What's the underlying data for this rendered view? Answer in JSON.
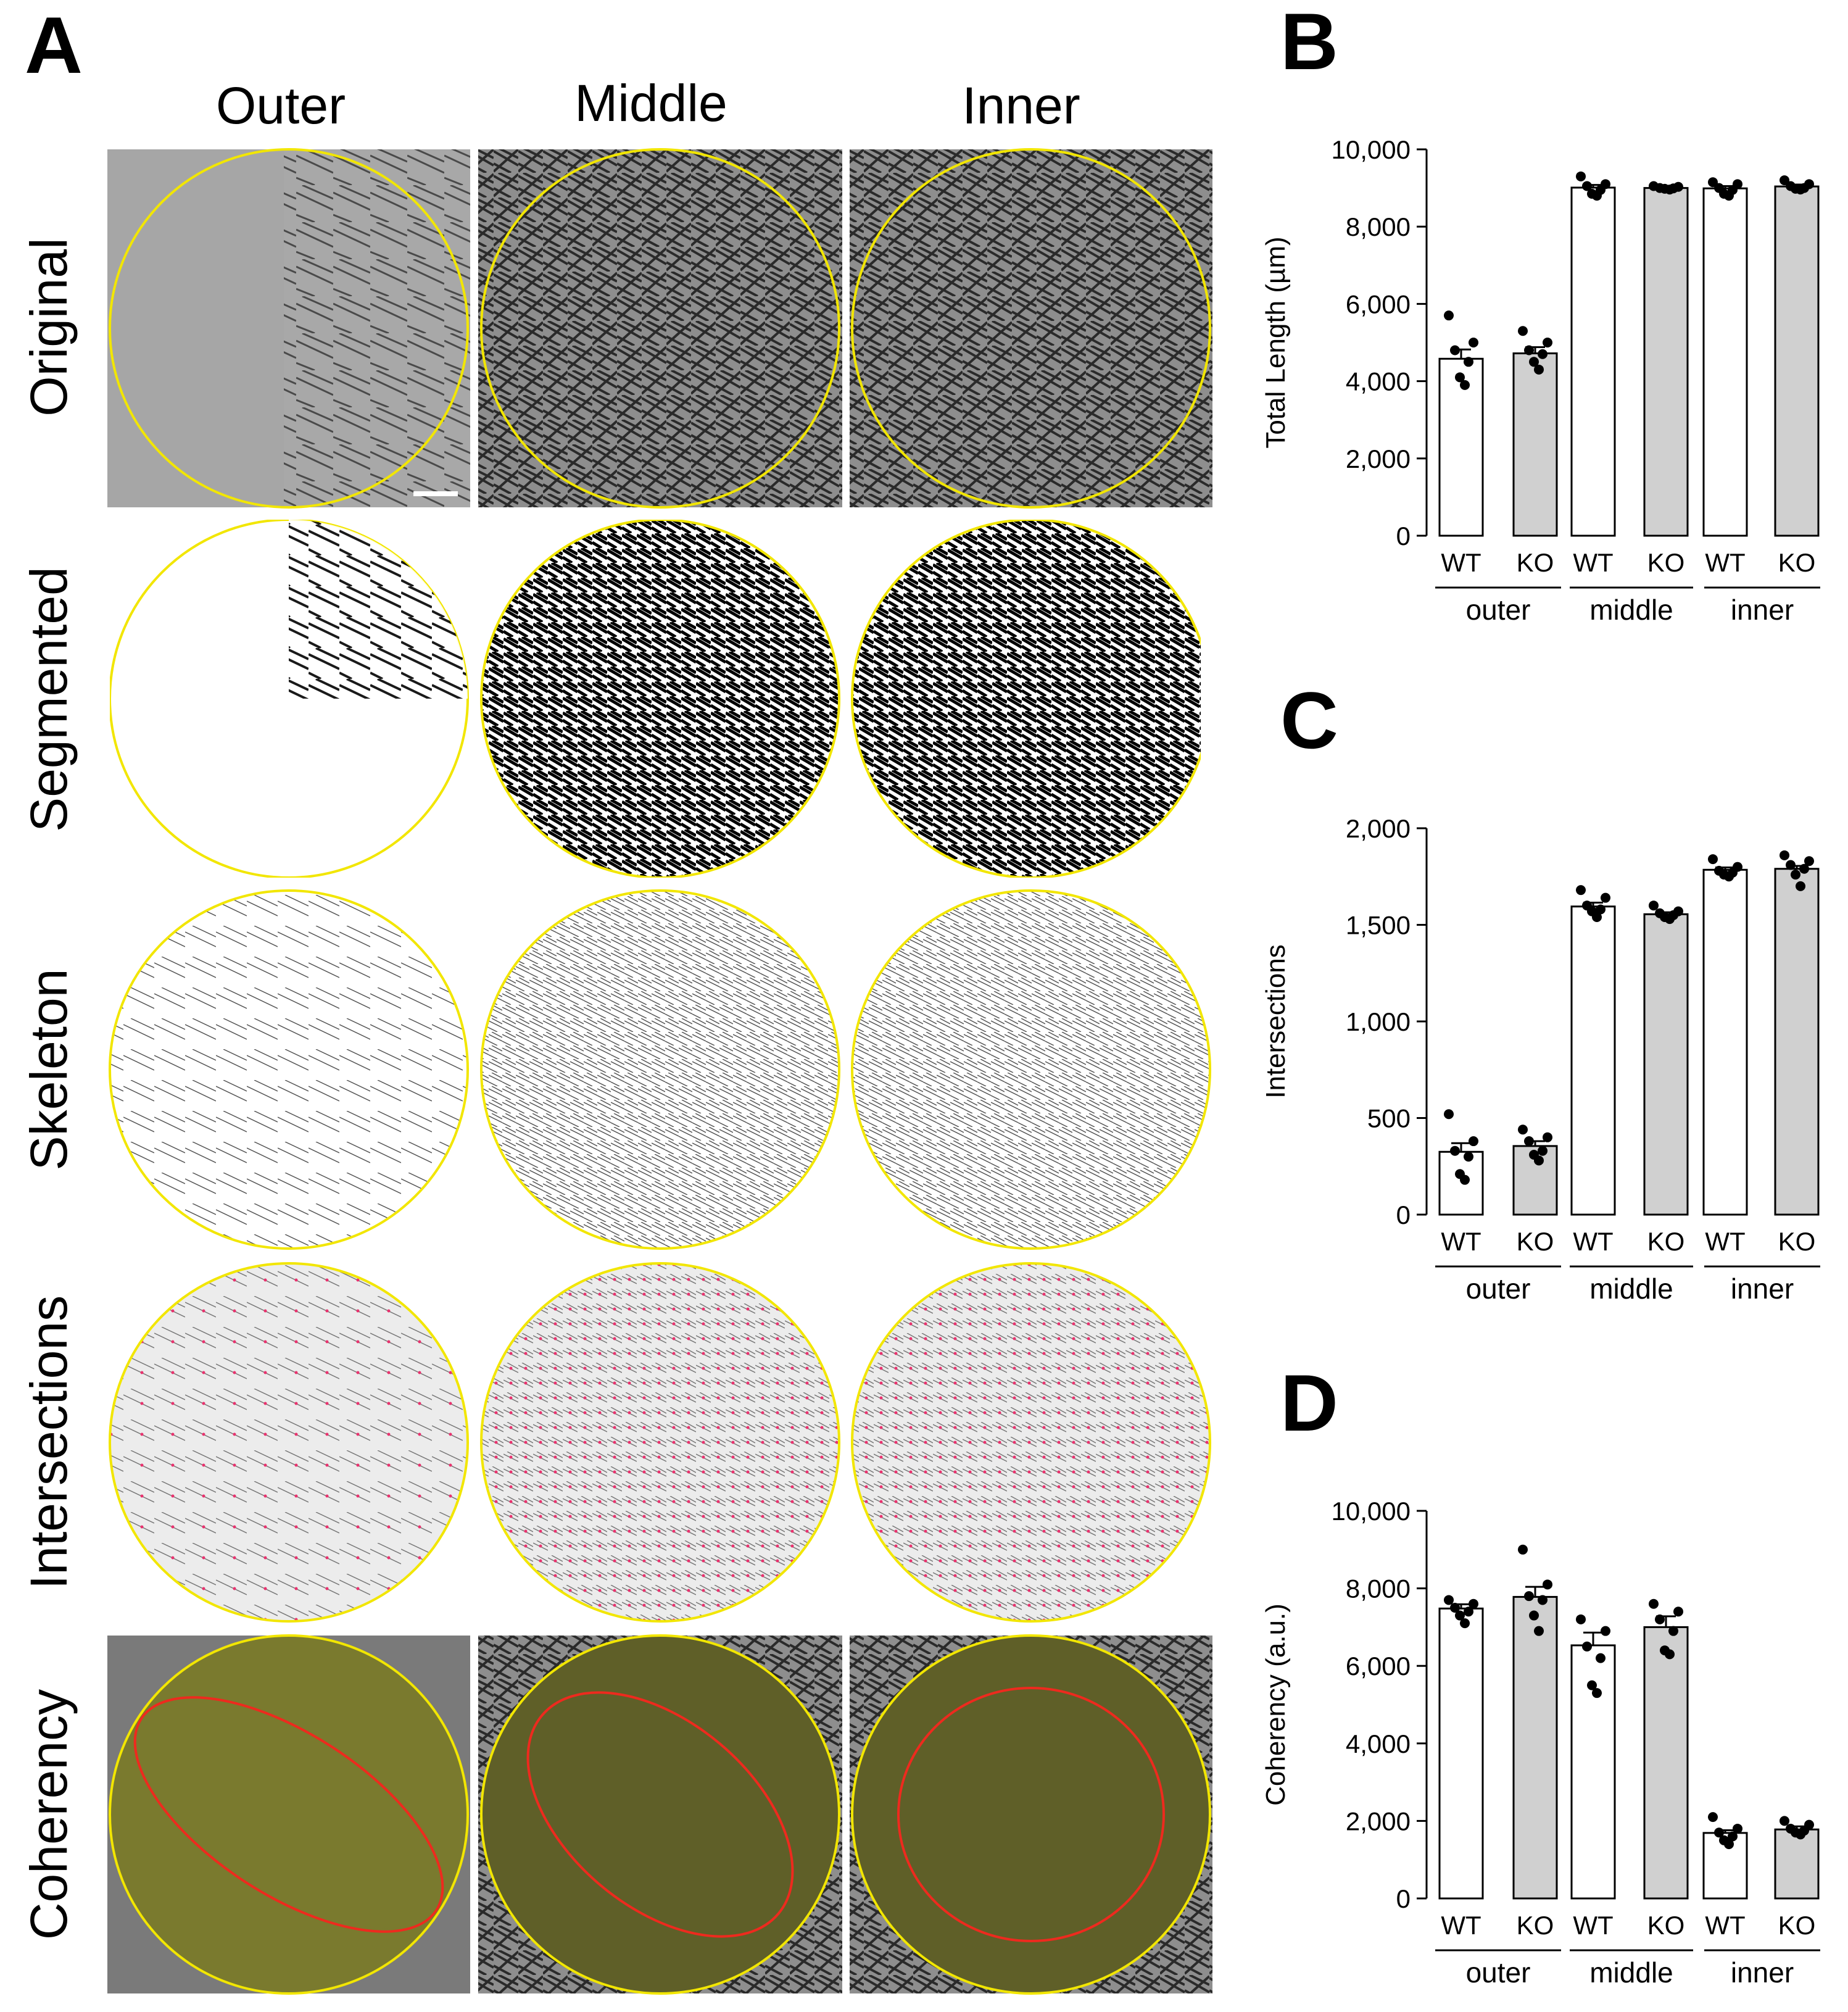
{
  "panel_a": {
    "letter": "A",
    "columns": [
      "Outer",
      "Middle",
      "Inner"
    ],
    "rows": [
      "Original",
      "Segmented",
      "Skeleton",
      "Intersections",
      "Coherency"
    ]
  },
  "colors": {
    "roi_circle": "#f2e600",
    "coherency_ellipse": "#ee2a1e",
    "coherency_tint": "#7a7a2e",
    "intersection_point": "#e8326e",
    "wt_fill": "#ffffff",
    "ko_fill": "#d0d0d0",
    "dot": "#000000"
  },
  "chart_data": [
    {
      "panel": "B",
      "type": "bar",
      "ylabel": "Total Length (µm)",
      "ylim": [
        0,
        10000
      ],
      "yticks": [
        0,
        2000,
        4000,
        6000,
        8000,
        10000
      ],
      "ytick_labels": [
        "0",
        "2,000",
        "4,000",
        "6,000",
        "8,000",
        "10,000"
      ],
      "categories": [
        "WT",
        "KO",
        "WT",
        "KO",
        "WT",
        "KO"
      ],
      "groups": [
        "outer",
        "middle",
        "inner"
      ],
      "values": [
        4580,
        4720,
        9010,
        9000,
        8990,
        9040
      ],
      "errors": [
        240,
        160,
        70,
        30,
        60,
        50
      ],
      "points": [
        [
          5700,
          5000,
          4800,
          4500,
          4100,
          3900
        ],
        [
          5300,
          5000,
          4800,
          4700,
          4500,
          4300
        ],
        [
          9300,
          9100,
          9050,
          8950,
          8850,
          8800
        ],
        [
          9050,
          9030,
          9000,
          8990,
          8980,
          8960
        ],
        [
          9150,
          9100,
          9000,
          8950,
          8850,
          8800
        ],
        [
          9200,
          9100,
          9050,
          9000,
          8980,
          8960
        ]
      ]
    },
    {
      "panel": "C",
      "type": "bar",
      "ylabel": "Intersections",
      "ylim": [
        0,
        2000
      ],
      "yticks": [
        0,
        500,
        1000,
        1500,
        2000
      ],
      "ytick_labels": [
        "0",
        "500",
        "1,000",
        "1,500",
        "2,000"
      ],
      "categories": [
        "WT",
        "KO",
        "WT",
        "KO",
        "WT",
        "KO"
      ],
      "groups": [
        "outer",
        "middle",
        "inner"
      ],
      "values": [
        325,
        355,
        1595,
        1555,
        1785,
        1790
      ],
      "errors": [
        45,
        25,
        20,
        10,
        12,
        15
      ],
      "points": [
        [
          520,
          380,
          330,
          300,
          210,
          180
        ],
        [
          440,
          400,
          380,
          330,
          310,
          280
        ],
        [
          1680,
          1640,
          1600,
          1580,
          1570,
          1540
        ],
        [
          1600,
          1570,
          1560,
          1550,
          1540,
          1530
        ],
        [
          1840,
          1800,
          1780,
          1770,
          1760,
          1750
        ],
        [
          1860,
          1830,
          1810,
          1790,
          1760,
          1700
        ]
      ]
    },
    {
      "panel": "D",
      "type": "bar",
      "ylabel": "Coherency (a.u.)",
      "ylim": [
        0,
        10000
      ],
      "yticks": [
        0,
        2000,
        4000,
        6000,
        8000,
        10000
      ],
      "ytick_labels": [
        "0",
        "2,000",
        "4,000",
        "6,000",
        "8,000",
        "10,000"
      ],
      "categories": [
        "WT",
        "KO",
        "WT",
        "KO",
        "WT",
        "KO"
      ],
      "groups": [
        "outer",
        "middle",
        "inner"
      ],
      "values": [
        7480,
        7780,
        6530,
        7000,
        1690,
        1780
      ],
      "errors": [
        110,
        260,
        330,
        280,
        70,
        80
      ],
      "points": [
        [
          7700,
          7600,
          7500,
          7400,
          7300,
          7100
        ],
        [
          9000,
          8100,
          7800,
          7700,
          7300,
          6900
        ],
        [
          7200,
          6900,
          6500,
          6200,
          5500,
          5300
        ],
        [
          7600,
          7400,
          7200,
          6900,
          6400,
          6300
        ],
        [
          2100,
          1800,
          1700,
          1600,
          1500,
          1400
        ],
        [
          2000,
          1900,
          1800,
          1750,
          1700,
          1650
        ]
      ]
    }
  ]
}
